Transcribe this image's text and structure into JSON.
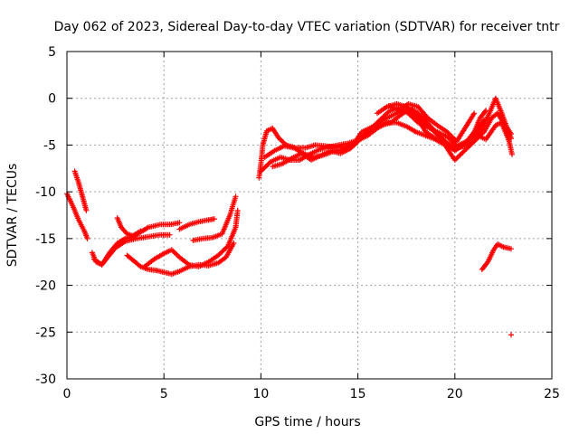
{
  "chart_data": {
    "type": "scatter",
    "title": "Day 062 of 2023, Sidereal Day-to-day VTEC variation (SDTVAR) for receiver tntr",
    "xlabel": "GPS time / hours",
    "ylabel": "SDTVAR / TECUs",
    "xlim": [
      0,
      25
    ],
    "ylim": [
      -30,
      5
    ],
    "xticks": [
      0,
      5,
      10,
      15,
      20,
      25
    ],
    "yticks": [
      -30,
      -25,
      -20,
      -15,
      -10,
      -5,
      0,
      5
    ],
    "xtick_labels": [
      "0",
      "5",
      "10",
      "15",
      "20",
      "25"
    ],
    "ytick_labels": [
      "-30",
      "-25",
      "-20",
      "-15",
      "-10",
      "-5",
      "0",
      "5"
    ],
    "grid": true,
    "legend": "none",
    "marker": "plus",
    "series_color": "#ff0000",
    "traces": [
      [
        [
          0.0,
          -10.2
        ],
        [
          0.3,
          -11.5
        ],
        [
          0.6,
          -13.0
        ],
        [
          0.9,
          -14.2
        ],
        [
          1.05,
          -15.0
        ]
      ],
      [
        [
          0.4,
          -7.8
        ],
        [
          0.6,
          -9.0
        ],
        [
          0.8,
          -10.5
        ],
        [
          1.0,
          -12.0
        ]
      ],
      [
        [
          1.3,
          -16.5
        ],
        [
          1.5,
          -17.5
        ],
        [
          1.8,
          -17.8
        ],
        [
          2.1,
          -17.0
        ],
        [
          2.5,
          -16.0
        ],
        [
          3.0,
          -15.3
        ],
        [
          3.6,
          -15.0
        ],
        [
          4.2,
          -14.8
        ],
        [
          4.8,
          -14.6
        ],
        [
          5.3,
          -14.6
        ]
      ],
      [
        [
          1.4,
          -17.2
        ],
        [
          1.8,
          -17.8
        ],
        [
          2.2,
          -16.5
        ],
        [
          2.6,
          -15.5
        ],
        [
          3.0,
          -15.0
        ],
        [
          3.4,
          -14.8
        ],
        [
          3.8,
          -14.3
        ],
        [
          4.2,
          -13.8
        ],
        [
          4.8,
          -13.5
        ],
        [
          5.3,
          -13.5
        ],
        [
          5.8,
          -13.3
        ]
      ],
      [
        [
          2.6,
          -12.8
        ],
        [
          2.8,
          -13.8
        ],
        [
          3.1,
          -14.5
        ],
        [
          3.4,
          -14.7
        ],
        [
          3.8,
          -14.2
        ]
      ],
      [
        [
          3.1,
          -16.8
        ],
        [
          3.4,
          -17.3
        ],
        [
          3.8,
          -18.0
        ],
        [
          4.2,
          -18.3
        ],
        [
          4.6,
          -18.4
        ],
        [
          5.0,
          -18.6
        ],
        [
          5.4,
          -18.8
        ],
        [
          5.8,
          -18.5
        ],
        [
          6.3,
          -18.0
        ],
        [
          6.8,
          -17.8
        ],
        [
          7.3,
          -17.9
        ],
        [
          7.8,
          -17.6
        ],
        [
          8.2,
          -17.0
        ],
        [
          8.6,
          -15.5
        ]
      ],
      [
        [
          4.0,
          -18.0
        ],
        [
          4.5,
          -17.2
        ],
        [
          5.0,
          -16.6
        ],
        [
          5.4,
          -16.2
        ],
        [
          5.8,
          -17.0
        ],
        [
          6.3,
          -17.8
        ],
        [
          6.8,
          -18.0
        ],
        [
          7.3,
          -17.5
        ],
        [
          7.8,
          -16.8
        ],
        [
          8.3,
          -15.8
        ],
        [
          8.7,
          -13.8
        ],
        [
          8.8,
          -12.0
        ]
      ],
      [
        [
          5.8,
          -14.0
        ],
        [
          6.3,
          -13.5
        ],
        [
          6.8,
          -13.2
        ],
        [
          7.3,
          -13.0
        ],
        [
          7.6,
          -12.9
        ]
      ],
      [
        [
          6.5,
          -15.2
        ],
        [
          7.0,
          -15.0
        ],
        [
          7.5,
          -14.9
        ],
        [
          8.0,
          -14.5
        ],
        [
          8.4,
          -12.5
        ],
        [
          8.7,
          -10.5
        ]
      ],
      [
        [
          9.9,
          -8.5
        ],
        [
          10.0,
          -7.0
        ],
        [
          10.1,
          -5.0
        ],
        [
          10.3,
          -3.5
        ],
        [
          10.6,
          -3.2
        ],
        [
          10.9,
          -4.2
        ],
        [
          11.3,
          -5.0
        ],
        [
          11.8,
          -5.3
        ],
        [
          12.3,
          -5.3
        ],
        [
          12.8,
          -5.0
        ],
        [
          13.3,
          -5.1
        ],
        [
          13.8,
          -5.2
        ],
        [
          14.3,
          -5.3
        ],
        [
          14.8,
          -5.0
        ],
        [
          15.3,
          -4.0
        ],
        [
          15.8,
          -3.0
        ],
        [
          16.3,
          -2.3
        ],
        [
          16.8,
          -1.8
        ],
        [
          17.3,
          -1.3
        ],
        [
          17.8,
          -1.2
        ],
        [
          18.3,
          -2.3
        ],
        [
          18.8,
          -3.3
        ],
        [
          19.3,
          -4.3
        ],
        [
          19.7,
          -5.2
        ],
        [
          20.0,
          -5.5
        ],
        [
          20.4,
          -5.0
        ],
        [
          20.8,
          -4.3
        ],
        [
          21.2,
          -3.3
        ],
        [
          21.5,
          -2.3
        ]
      ],
      [
        [
          10.0,
          -7.8
        ],
        [
          10.5,
          -6.8
        ],
        [
          11.0,
          -6.3
        ],
        [
          11.5,
          -6.6
        ],
        [
          12.0,
          -6.6
        ],
        [
          12.5,
          -6.0
        ],
        [
          13.0,
          -5.5
        ],
        [
          13.5,
          -5.2
        ],
        [
          14.0,
          -5.0
        ],
        [
          14.5,
          -4.8
        ],
        [
          15.0,
          -4.5
        ],
        [
          15.5,
          -4.0
        ],
        [
          16.0,
          -3.2
        ],
        [
          16.5,
          -2.6
        ],
        [
          17.0,
          -2.6
        ],
        [
          17.5,
          -3.0
        ],
        [
          18.0,
          -3.6
        ],
        [
          18.5,
          -4.0
        ],
        [
          19.0,
          -4.4
        ],
        [
          19.5,
          -5.0
        ],
        [
          19.8,
          -6.0
        ],
        [
          20.0,
          -6.6
        ],
        [
          20.4,
          -5.8
        ],
        [
          20.9,
          -4.8
        ],
        [
          21.4,
          -3.2
        ],
        [
          21.8,
          -1.5
        ],
        [
          22.1,
          0.0
        ],
        [
          22.4,
          -1.5
        ],
        [
          22.7,
          -3.2
        ],
        [
          22.9,
          -4.3
        ]
      ],
      [
        [
          10.2,
          -6.3
        ],
        [
          10.7,
          -5.6
        ],
        [
          11.2,
          -5.1
        ],
        [
          11.7,
          -5.3
        ],
        [
          12.2,
          -5.9
        ],
        [
          12.7,
          -6.3
        ],
        [
          13.2,
          -6.1
        ],
        [
          13.7,
          -5.7
        ],
        [
          14.2,
          -5.5
        ],
        [
          14.7,
          -5.1
        ],
        [
          15.2,
          -3.6
        ],
        [
          15.7,
          -3.1
        ],
        [
          16.2,
          -2.9
        ],
        [
          16.7,
          -2.6
        ],
        [
          17.2,
          -1.8
        ],
        [
          17.6,
          -1.2
        ],
        [
          18.0,
          -1.4
        ],
        [
          18.5,
          -2.4
        ],
        [
          19.0,
          -3.6
        ],
        [
          19.5,
          -4.6
        ],
        [
          20.0,
          -5.4
        ],
        [
          20.5,
          -5.1
        ],
        [
          21.0,
          -4.6
        ],
        [
          21.5,
          -3.6
        ],
        [
          21.9,
          -2.1
        ],
        [
          22.2,
          -1.6
        ],
        [
          22.5,
          -2.6
        ],
        [
          22.9,
          -3.8
        ]
      ],
      [
        [
          10.6,
          -7.3
        ],
        [
          11.1,
          -7.0
        ],
        [
          11.6,
          -6.4
        ],
        [
          12.1,
          -5.9
        ],
        [
          12.6,
          -6.6
        ],
        [
          13.1,
          -6.1
        ],
        [
          13.6,
          -5.6
        ],
        [
          14.1,
          -5.9
        ],
        [
          14.6,
          -5.4
        ],
        [
          15.1,
          -4.4
        ],
        [
          15.6,
          -3.4
        ],
        [
          16.1,
          -2.4
        ],
        [
          16.6,
          -1.4
        ],
        [
          17.1,
          -1.0
        ],
        [
          17.6,
          -1.6
        ],
        [
          18.1,
          -2.6
        ],
        [
          18.6,
          -3.1
        ],
        [
          19.1,
          -3.6
        ],
        [
          19.6,
          -4.1
        ],
        [
          20.1,
          -5.1
        ],
        [
          20.6,
          -4.6
        ],
        [
          21.1,
          -3.9
        ],
        [
          21.6,
          -4.4
        ],
        [
          22.1,
          -2.9
        ],
        [
          22.4,
          -2.6
        ],
        [
          22.8,
          -4.6
        ],
        [
          22.95,
          -6.0
        ]
      ],
      [
        [
          16.0,
          -1.6
        ],
        [
          16.5,
          -0.9
        ],
        [
          17.0,
          -0.6
        ],
        [
          17.5,
          -0.9
        ],
        [
          18.0,
          -1.9
        ],
        [
          18.5,
          -3.6
        ],
        [
          19.0,
          -4.3
        ],
        [
          19.5,
          -4.6
        ],
        [
          20.0,
          -5.6
        ],
        [
          20.5,
          -4.9
        ],
        [
          21.0,
          -3.6
        ],
        [
          21.3,
          -2.1
        ],
        [
          21.6,
          -1.3
        ]
      ],
      [
        [
          16.6,
          -0.8
        ],
        [
          17.1,
          -1.3
        ],
        [
          17.6,
          -0.6
        ],
        [
          18.1,
          -0.9
        ],
        [
          18.6,
          -2.1
        ],
        [
          19.1,
          -2.9
        ],
        [
          19.6,
          -3.6
        ],
        [
          20.1,
          -4.6
        ],
        [
          20.4,
          -3.6
        ],
        [
          20.7,
          -2.6
        ],
        [
          21.0,
          -1.6
        ]
      ],
      [
        [
          21.4,
          -18.3
        ],
        [
          21.7,
          -17.5
        ],
        [
          22.0,
          -16.2
        ],
        [
          22.2,
          -15.6
        ],
        [
          22.5,
          -15.9
        ],
        [
          22.9,
          -16.1
        ]
      ],
      [
        [
          22.9,
          -25.3
        ]
      ]
    ]
  }
}
